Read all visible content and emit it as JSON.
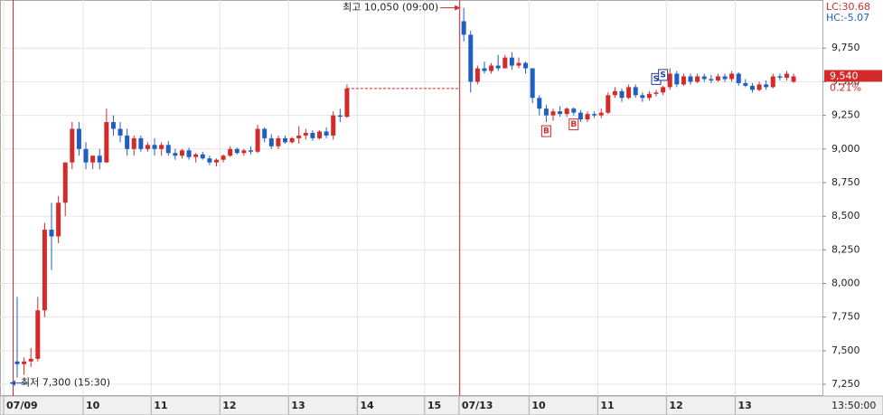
{
  "chart_data": {
    "type": "candlestick",
    "up_color": "#d42a2a",
    "down_color": "#1f5fbf",
    "xlim": [
      -1.5,
      118.2
    ],
    "ylim": [
      7163,
      10108
    ],
    "xticks": [
      {
        "value": -0.97,
        "label": "07/09"
      },
      {
        "value": 10.6,
        "label": "10"
      },
      {
        "value": 20.5,
        "label": "11"
      },
      {
        "value": 30.5,
        "label": "12"
      },
      {
        "value": 40.5,
        "label": "13"
      },
      {
        "value": 50.5,
        "label": "14"
      },
      {
        "value": 60.3,
        "label": "15"
      },
      {
        "value": 65.3,
        "label": "07/13"
      },
      {
        "value": 75.5,
        "label": "10"
      },
      {
        "value": 85.5,
        "label": "11"
      },
      {
        "value": 95.5,
        "label": "12"
      },
      {
        "value": 105.5,
        "label": "13"
      }
    ],
    "x_end_label": "13:50:00",
    "yticks": [
      {
        "value": 7250,
        "label": "7,250"
      },
      {
        "value": 7500,
        "label": "7,500"
      },
      {
        "value": 7750,
        "label": "7,750"
      },
      {
        "value": 8000,
        "label": "8,000"
      },
      {
        "value": 8250,
        "label": "8,250"
      },
      {
        "value": 8500,
        "label": "8,500"
      },
      {
        "value": 8750,
        "label": "8,750"
      },
      {
        "value": 9000,
        "label": "9,000"
      },
      {
        "value": 9250,
        "label": "9,250"
      },
      {
        "value": 9500,
        "label": "9,500"
      },
      {
        "value": 9750,
        "label": "9,750"
      }
    ],
    "grid": true,
    "candles": [
      [
        1,
        7420,
        7900,
        7300,
        7400
      ],
      [
        2,
        7400,
        7450,
        7320,
        7420
      ],
      [
        3,
        7420,
        7520,
        7380,
        7440
      ],
      [
        4,
        7440,
        7900,
        7420,
        7800
      ],
      [
        5,
        7800,
        8450,
        7750,
        8400
      ],
      [
        6,
        8400,
        8600,
        8100,
        8350
      ],
      [
        7,
        8350,
        8650,
        8300,
        8600
      ],
      [
        8,
        8600,
        8900,
        8500,
        8900
      ],
      [
        9,
        8900,
        9200,
        8850,
        9150
      ],
      [
        10,
        9150,
        9200,
        8950,
        9000
      ],
      [
        11,
        9000,
        9050,
        8850,
        8900
      ],
      [
        12,
        8900,
        8950,
        8850,
        8950
      ],
      [
        13,
        8950,
        9000,
        8850,
        8900
      ],
      [
        14,
        8900,
        9300,
        8900,
        9200
      ],
      [
        15,
        9200,
        9250,
        9100,
        9150
      ],
      [
        16,
        9150,
        9200,
        9050,
        9100
      ],
      [
        17,
        9100,
        9150,
        8950,
        9000
      ],
      [
        18,
        9000,
        9100,
        8950,
        9080
      ],
      [
        19,
        9080,
        9100,
        8980,
        9000
      ],
      [
        20,
        9000,
        9050,
        8980,
        9030
      ],
      [
        21,
        9030,
        9080,
        8950,
        9000
      ],
      [
        22,
        9000,
        9050,
        8950,
        9030
      ],
      [
        23,
        9030,
        9060,
        8950,
        8970
      ],
      [
        24,
        8970,
        9000,
        8920,
        8950
      ],
      [
        25,
        8950,
        9000,
        8930,
        8990
      ],
      [
        26,
        8990,
        9010,
        8920,
        8940
      ],
      [
        27,
        8940,
        8970,
        8900,
        8960
      ],
      [
        28,
        8960,
        8980,
        8920,
        8930
      ],
      [
        29,
        8930,
        8950,
        8880,
        8900
      ],
      [
        30,
        8900,
        8930,
        8870,
        8920
      ],
      [
        31,
        8920,
        8960,
        8900,
        8950
      ],
      [
        32,
        8950,
        9020,
        8940,
        9000
      ],
      [
        33,
        9000,
        9010,
        8960,
        8970
      ],
      [
        34,
        8970,
        9000,
        8950,
        8990
      ],
      [
        35,
        8990,
        9020,
        8960,
        8980
      ],
      [
        36,
        8980,
        9180,
        8970,
        9150
      ],
      [
        37,
        9150,
        9160,
        9050,
        9080
      ],
      [
        38,
        9080,
        9110,
        9000,
        9020
      ],
      [
        39,
        9020,
        9100,
        9000,
        9080
      ],
      [
        40,
        9080,
        9100,
        9040,
        9050
      ],
      [
        41,
        9050,
        9090,
        9040,
        9080
      ],
      [
        42,
        9080,
        9170,
        9040,
        9100
      ],
      [
        43,
        9100,
        9150,
        9070,
        9120
      ],
      [
        44,
        9120,
        9140,
        9060,
        9080
      ],
      [
        45,
        9080,
        9140,
        9070,
        9130
      ],
      [
        46,
        9130,
        9160,
        9080,
        9100
      ],
      [
        47,
        9100,
        9280,
        9070,
        9250
      ],
      [
        48,
        9250,
        9300,
        9200,
        9240
      ],
      [
        49,
        9240,
        9480,
        9230,
        9450
      ],
      [
        66,
        9950,
        10050,
        9800,
        9850
      ],
      [
        67,
        9850,
        9880,
        9420,
        9500
      ],
      [
        68,
        9500,
        9620,
        9480,
        9600
      ],
      [
        69,
        9600,
        9650,
        9560,
        9580
      ],
      [
        70,
        9580,
        9640,
        9560,
        9620
      ],
      [
        71,
        9620,
        9700,
        9580,
        9600
      ],
      [
        72,
        9600,
        9700,
        9600,
        9680
      ],
      [
        73,
        9680,
        9720,
        9590,
        9620
      ],
      [
        74,
        9620,
        9680,
        9600,
        9640
      ],
      [
        75,
        9640,
        9650,
        9560,
        9600
      ],
      [
        76,
        9600,
        9600,
        9340,
        9380
      ],
      [
        77,
        9380,
        9400,
        9250,
        9300
      ],
      [
        78,
        9300,
        9330,
        9200,
        9250
      ],
      [
        79,
        9250,
        9300,
        9210,
        9280
      ],
      [
        80,
        9280,
        9320,
        9240,
        9260
      ],
      [
        81,
        9260,
        9310,
        9240,
        9300
      ],
      [
        82,
        9300,
        9310,
        9250,
        9270
      ],
      [
        83,
        9270,
        9290,
        9200,
        9220
      ],
      [
        84,
        9220,
        9280,
        9200,
        9260
      ],
      [
        85,
        9260,
        9280,
        9230,
        9250
      ],
      [
        86,
        9250,
        9300,
        9230,
        9270
      ],
      [
        87,
        9270,
        9420,
        9260,
        9400
      ],
      [
        88,
        9400,
        9460,
        9380,
        9430
      ],
      [
        89,
        9430,
        9450,
        9350,
        9380
      ],
      [
        90,
        9380,
        9480,
        9370,
        9460
      ],
      [
        91,
        9460,
        9480,
        9380,
        9400
      ],
      [
        92,
        9400,
        9420,
        9350,
        9380
      ],
      [
        93,
        9380,
        9430,
        9360,
        9410
      ],
      [
        94,
        9410,
        9440,
        9390,
        9420
      ],
      [
        95,
        9420,
        9470,
        9400,
        9460
      ],
      [
        96,
        9460,
        9600,
        9440,
        9560
      ],
      [
        97,
        9560,
        9580,
        9460,
        9480
      ],
      [
        98,
        9480,
        9560,
        9470,
        9540
      ],
      [
        99,
        9540,
        9560,
        9480,
        9500
      ],
      [
        100,
        9500,
        9560,
        9490,
        9540
      ],
      [
        101,
        9540,
        9560,
        9500,
        9520
      ],
      [
        102,
        9520,
        9550,
        9490,
        9510
      ],
      [
        103,
        9510,
        9560,
        9500,
        9540
      ],
      [
        104,
        9540,
        9560,
        9500,
        9520
      ],
      [
        105,
        9520,
        9580,
        9500,
        9560
      ],
      [
        106,
        9560,
        9570,
        9470,
        9490
      ],
      [
        107,
        9490,
        9520,
        9460,
        9470
      ],
      [
        108,
        9470,
        9490,
        9420,
        9440
      ],
      [
        109,
        9440,
        9500,
        9430,
        9480
      ],
      [
        110,
        9480,
        9510,
        9440,
        9460
      ],
      [
        111,
        9460,
        9560,
        9450,
        9540
      ],
      [
        112,
        9540,
        9560,
        9510,
        9530
      ],
      [
        113,
        9530,
        9580,
        9510,
        9560
      ],
      [
        114,
        9500,
        9560,
        9490,
        9540
      ]
    ],
    "markers": [
      {
        "label": "B",
        "x": 78
      },
      {
        "label": "B",
        "x": 82
      },
      {
        "label": "S",
        "x": 94
      },
      {
        "label": "S",
        "x": 95
      }
    ],
    "high_note": {
      "label": "최고 10,050 (09:00)",
      "x": 66,
      "value": 10050
    },
    "low_note": {
      "label": "최저 7,300 (15:30)",
      "x": 1,
      "value": 7300
    },
    "lc_label": "LC:30.68",
    "hc_label": "HC:-5.07",
    "last_price": {
      "value": 9540,
      "label": "9,540",
      "change": "0.21%"
    }
  }
}
